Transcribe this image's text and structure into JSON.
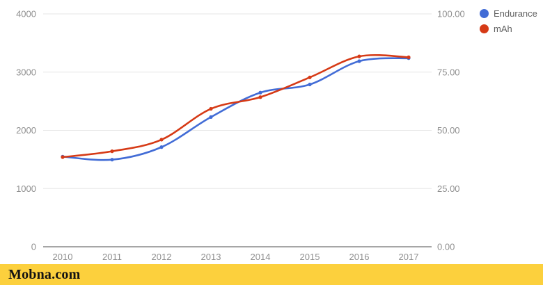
{
  "watermark": {
    "text": "Mobna.com",
    "bar_color": "#fcd03d",
    "text_color": "#131313"
  },
  "legend": {
    "items": [
      {
        "label": "Endurance",
        "color": "#426cd6"
      },
      {
        "label": "mAh",
        "color": "#d63a16"
      }
    ]
  },
  "chart_data": {
    "type": "line",
    "curve": "smooth",
    "title": "",
    "x": [
      2010,
      2011,
      2012,
      2013,
      2014,
      2015,
      2016,
      2017
    ],
    "x_tick_labels": [
      "2010",
      "2011",
      "2012",
      "2013",
      "2014",
      "2015",
      "2016",
      "2017"
    ],
    "series": [
      {
        "name": "Endurance",
        "axis": "right",
        "color": "#426cd6",
        "values": [
          38.7,
          37.4,
          42.8,
          55.7,
          66.2,
          69.7,
          79.7,
          81.0
        ]
      },
      {
        "name": "mAh",
        "axis": "left",
        "color": "#d63a16",
        "values": [
          1540,
          1640,
          1840,
          2370,
          2570,
          2910,
          3270,
          3255
        ]
      }
    ],
    "left_axis": {
      "range": [
        0,
        4000
      ],
      "ticks": [
        0,
        1000,
        2000,
        3000,
        4000
      ],
      "tick_labels": [
        "0",
        "1000",
        "2000",
        "3000",
        "4000"
      ]
    },
    "right_axis": {
      "range": [
        0,
        100
      ],
      "ticks": [
        0,
        25,
        50,
        75,
        100
      ],
      "tick_labels": [
        "0.00",
        "25.00",
        "50.00",
        "75.00",
        "100.00"
      ]
    },
    "grid": true,
    "gridline_color": "#e6e6e6",
    "baseline_color": "#4d4d4d",
    "legend_position": "top-right"
  }
}
